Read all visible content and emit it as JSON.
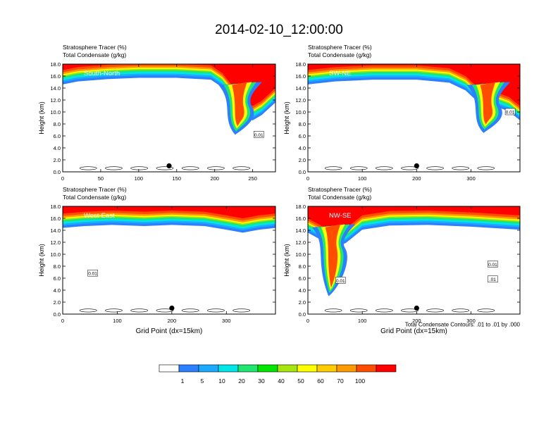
{
  "title": "2014-02-10_12:00:00",
  "chart_data": [
    {
      "type": "heatmap",
      "cross_section": "South-North",
      "header_lines": [
        "Stratosphere Tracer   (%)",
        "Total Condensate   (g/kg)"
      ],
      "xlabel": "",
      "ylabel": "Height (km)",
      "xlim": [
        0,
        280
      ],
      "ylim": [
        0,
        18
      ],
      "xticks": [
        0,
        50,
        100,
        150,
        200,
        250
      ],
      "yticks": [
        0.0,
        2.0,
        4.0,
        6.0,
        8.0,
        10.0,
        12.0,
        14.0,
        16.0,
        18.0
      ],
      "ytick_labels": [
        "0.0",
        "2.0",
        "4.0",
        "6.0",
        "8.0",
        "10.0",
        "12.0",
        "14.0",
        "16.0",
        "18.0"
      ],
      "tracer_base_km": [
        [
          0,
          15.5
        ],
        [
          20,
          16.0
        ],
        [
          60,
          16.4
        ],
        [
          100,
          16.6
        ],
        [
          150,
          16.6
        ],
        [
          195,
          16.3
        ],
        [
          210,
          15.0
        ],
        [
          225,
          12.6
        ],
        [
          238,
          10.0
        ],
        [
          250,
          9.5
        ],
        [
          262,
          10.4
        ],
        [
          280,
          12.5
        ]
      ],
      "intrusion": {
        "x": 232,
        "bottom_km": 6.2
      },
      "contour_labels": [
        {
          "text": "0.01",
          "x": 258,
          "y": 6.2
        }
      ],
      "marker": {
        "x": 140,
        "y": 1.0
      }
    },
    {
      "type": "heatmap",
      "cross_section": "SW-NE",
      "header_lines": [
        "Stratosphere Tracer   (%)",
        "Total Condensate   (g/kg)"
      ],
      "xlabel": "",
      "ylabel": "Height (km)",
      "xlim": [
        0,
        390
      ],
      "ylim": [
        0,
        18
      ],
      "xticks": [
        0,
        100,
        200,
        300
      ],
      "yticks": [
        0.0,
        2.0,
        4.0,
        6.0,
        8.0,
        10.0,
        12.0,
        14.0,
        16.0,
        18.0
      ],
      "ytick_labels": [
        "0.0",
        "2.0",
        "4.0",
        "6.0",
        "8.0",
        "10.0",
        "12.0",
        "14.0",
        "16.0",
        "18.0"
      ],
      "tracer_base_km": [
        [
          0,
          15.5
        ],
        [
          50,
          16.0
        ],
        [
          120,
          16.3
        ],
        [
          200,
          16.3
        ],
        [
          260,
          15.8
        ],
        [
          290,
          14.5
        ],
        [
          310,
          12.8
        ],
        [
          340,
          12.0
        ],
        [
          370,
          11.0
        ],
        [
          390,
          9.5
        ]
      ],
      "intrusion": {
        "x": 330,
        "bottom_km": 6.5
      },
      "contour_labels": [
        {
          "text": "0.01",
          "x": 372,
          "y": 10.0
        }
      ],
      "marker": {
        "x": 200,
        "y": 1.0
      }
    },
    {
      "type": "heatmap",
      "cross_section": "West-East",
      "header_lines": [
        "Stratosphere Tracer   (%)",
        "Total Condensate   (g/kg)"
      ],
      "xlabel": "Grid Point (dx=15km)",
      "ylabel": "Height (km)",
      "xlim": [
        0,
        390
      ],
      "ylim": [
        0,
        18
      ],
      "xticks": [
        0,
        100,
        200,
        300
      ],
      "yticks": [
        0.0,
        2.0,
        4.0,
        6.0,
        8.0,
        10.0,
        12.0,
        14.0,
        16.0,
        18.0
      ],
      "ytick_labels": [
        "0.0",
        "2.0",
        "4.0",
        "6.0",
        "8.0",
        "10.0",
        "12.0",
        "14.0",
        "16.0",
        "18.0"
      ],
      "tracer_base_km": [
        [
          0,
          15.3
        ],
        [
          40,
          15.6
        ],
        [
          90,
          15.8
        ],
        [
          150,
          15.6
        ],
        [
          200,
          15.8
        ],
        [
          260,
          15.6
        ],
        [
          300,
          15.0
        ],
        [
          330,
          14.5
        ],
        [
          360,
          15.0
        ],
        [
          390,
          15.3
        ]
      ],
      "intrusion": null,
      "contour_labels": [
        {
          "text": "0.01",
          "x": 55,
          "y": 6.8
        }
      ],
      "marker": {
        "x": 200,
        "y": 1.0
      }
    },
    {
      "type": "heatmap",
      "cross_section": "NW-SE",
      "header_lines": [
        "Stratosphere Tracer   (%)",
        "Total Condensate   (g/kg)"
      ],
      "xlabel": "Grid Point (dx=15km)",
      "ylabel": "Height (km)",
      "xlim": [
        0,
        390
      ],
      "ylim": [
        0,
        18
      ],
      "xticks": [
        0,
        100,
        200,
        300
      ],
      "yticks": [
        0.0,
        2.0,
        4.0,
        6.0,
        8.0,
        10.0,
        12.0,
        14.0,
        16.0,
        18.0
      ],
      "ytick_labels": [
        "0.0",
        "2.0",
        "4.0",
        "6.0",
        "8.0",
        "10.0",
        "12.0",
        "14.0",
        "16.0",
        "18.0"
      ],
      "tracer_base_km": [
        [
          0,
          14.5
        ],
        [
          30,
          13.0
        ],
        [
          50,
          12.0
        ],
        [
          70,
          12.8
        ],
        [
          100,
          15.0
        ],
        [
          150,
          15.7
        ],
        [
          220,
          15.8
        ],
        [
          300,
          15.5
        ],
        [
          390,
          15.0
        ]
      ],
      "intrusion": {
        "x": 45,
        "bottom_km": 3.0
      },
      "contour_labels": [
        {
          "text": "0.01",
          "x": 60,
          "y": 5.6
        },
        {
          "text": "0.01",
          "x": 340,
          "y": 8.3
        },
        {
          "text": ".01",
          "x": 340,
          "y": 5.8
        }
      ],
      "marker": {
        "x": 200,
        "y": 1.0
      }
    }
  ],
  "footnote": "Total Condensate Contours: .01 to .01 by .000",
  "colorbar": {
    "labels": [
      "1",
      "5",
      "10",
      "20",
      "30",
      "40",
      "50",
      "60",
      "70",
      "100"
    ],
    "colors": [
      "#ffffff",
      "#2c7fff",
      "#1aaaff",
      "#00e6e6",
      "#1ee66e",
      "#00e600",
      "#a6e60e",
      "#ffff00",
      "#ffcc00",
      "#ff9900",
      "#ff4d00",
      "#ff0000"
    ]
  }
}
